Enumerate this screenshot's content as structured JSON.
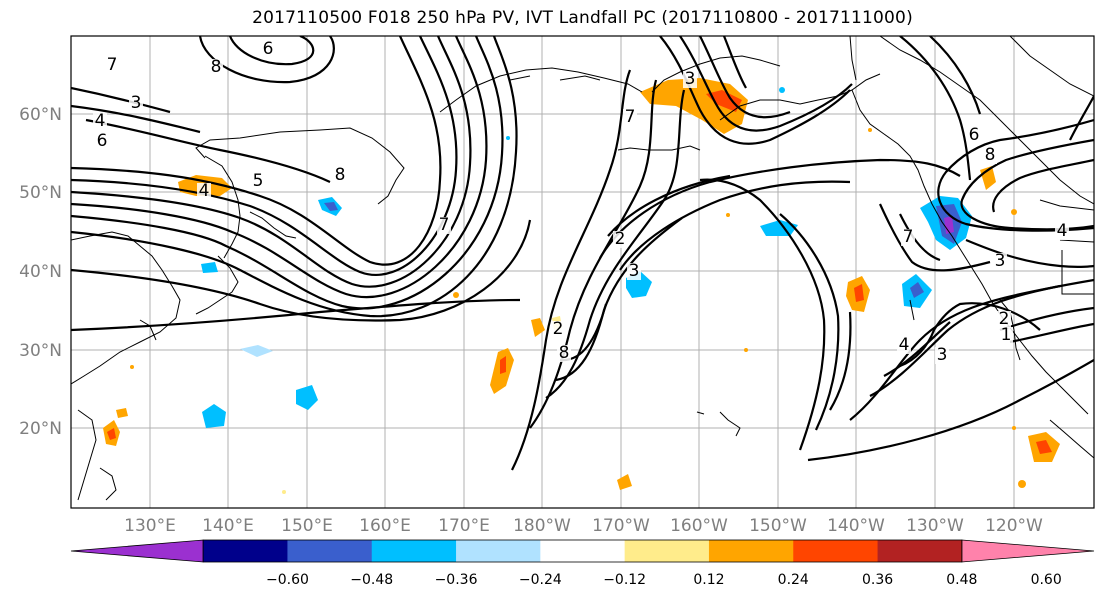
{
  "title": "2017110500 F018 250 hPa PV, IVT Landfall PC (2017110800 - 2017111000)",
  "lon_ticks": [
    "130°E",
    "140°E",
    "150°E",
    "160°E",
    "170°E",
    "180°W",
    "170°W",
    "160°W",
    "150°W",
    "140°W",
    "130°W",
    "120°W"
  ],
  "lat_ticks": [
    "60°N",
    "50°N",
    "40°N",
    "30°N",
    "20°N"
  ],
  "colorbar": {
    "labels": [
      "−0.60",
      "−0.48",
      "−0.36",
      "−0.24",
      "−0.12",
      "0.12",
      "0.24",
      "0.36",
      "0.48",
      "0.60"
    ],
    "colors": [
      "#9b30d0",
      "#00008b",
      "#3a5fcd",
      "#00bfff",
      "#b0e2ff",
      "#ffffff",
      "#ffec8b",
      "#ffa500",
      "#ff4500",
      "#b22222",
      "#ff82ab"
    ]
  },
  "contour_labels": [
    "6",
    "8",
    "7",
    "3",
    "4",
    "6",
    "4",
    "5",
    "8",
    "7",
    "2",
    "3",
    "8",
    "2",
    "3",
    "7",
    "6",
    "8",
    "7",
    "4",
    "3",
    "2",
    "1",
    "4",
    "3"
  ],
  "colors": {
    "grid": "#b0b0b0",
    "contour": "#000000",
    "coast": "#000000"
  }
}
